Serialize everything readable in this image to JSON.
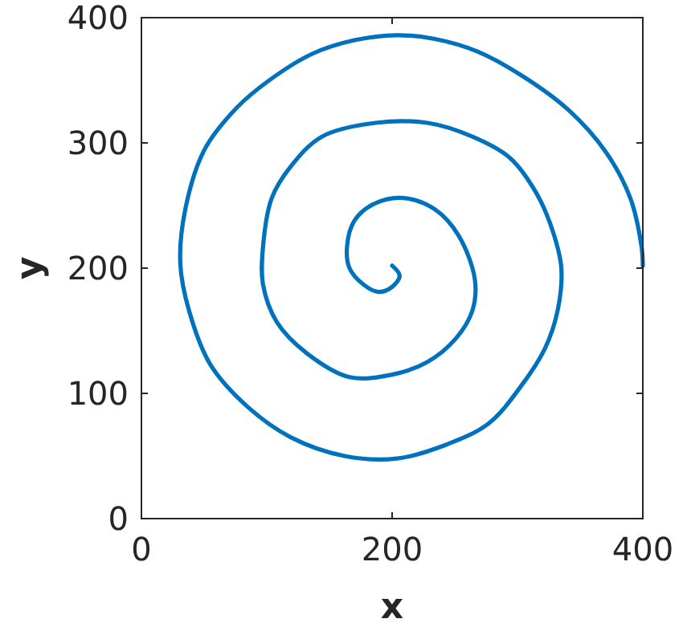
{
  "chart_data": {
    "type": "line",
    "xlabel": "x",
    "ylabel": "y",
    "xlim": [
      0,
      400
    ],
    "ylim": [
      0,
      400
    ],
    "xticks": [
      0,
      200,
      400
    ],
    "yticks": [
      0,
      100,
      200,
      300,
      400
    ],
    "grid": false,
    "marker": "none",
    "line_style": "solid",
    "series": [
      {
        "color": "#0072bd",
        "x": [
          200,
          206,
          200,
          189,
          177,
          166,
          164,
          170,
          185,
          209,
          234,
          253,
          266,
          264,
          251,
          228,
          200,
          166,
          132,
          108,
          97,
          97,
          104,
          119,
          144,
          187,
          228,
          264,
          294,
          315,
          328,
          335,
          332,
          322,
          303,
          277,
          243,
          204,
          162,
          119,
          85,
          55,
          38,
          31,
          35,
          50,
          76,
          102,
          136,
          170,
          204,
          234,
          268,
          303,
          341,
          371,
          390,
          399,
          400
        ],
        "values": [
          202,
          194,
          185,
          181,
          187,
          200,
          217,
          238,
          251,
          256,
          247,
          226,
          191,
          166,
          144,
          125,
          115,
          113,
          132,
          157,
          187,
          217,
          256,
          281,
          305,
          316,
          316,
          305,
          288,
          260,
          230,
          200,
          166,
          136,
          106,
          76,
          59,
          48,
          50,
          65,
          89,
          123,
          166,
          204,
          247,
          294,
          328,
          350,
          371,
          382,
          386,
          383,
          373,
          354,
          326,
          292,
          256,
          217,
          202
        ]
      }
    ]
  }
}
